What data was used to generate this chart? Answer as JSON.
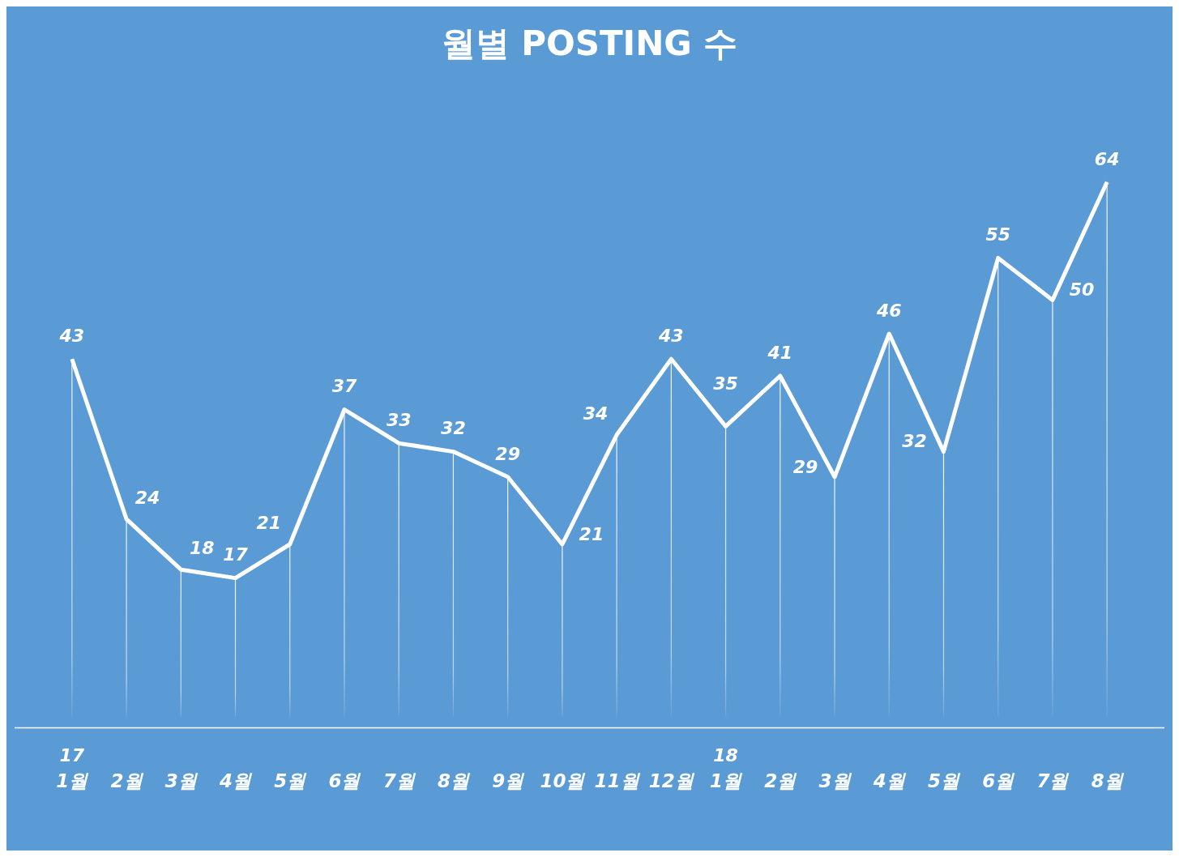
{
  "chart_data": {
    "type": "line",
    "title": "월별 POSTING 수",
    "categories": [
      "1월",
      "2월",
      "3월",
      "4월",
      "5월",
      "6월",
      "7월",
      "8월",
      "9월",
      "10월",
      "11월",
      "12월",
      "1월",
      "2월",
      "3월",
      "4월",
      "5월",
      "6월",
      "7월",
      "8월"
    ],
    "series": [
      {
        "color": "#ffffff",
        "values": [
          43,
          24,
          18,
          17,
          21,
          37,
          33,
          32,
          29,
          21,
          34,
          43,
          35,
          41,
          29,
          46,
          32,
          55,
          50,
          64
        ]
      }
    ],
    "annotations": [
      "17",
      "18"
    ],
    "data_labels": true,
    "grid": "x",
    "legend": false,
    "marker": "none",
    "line_style": "solid"
  }
}
